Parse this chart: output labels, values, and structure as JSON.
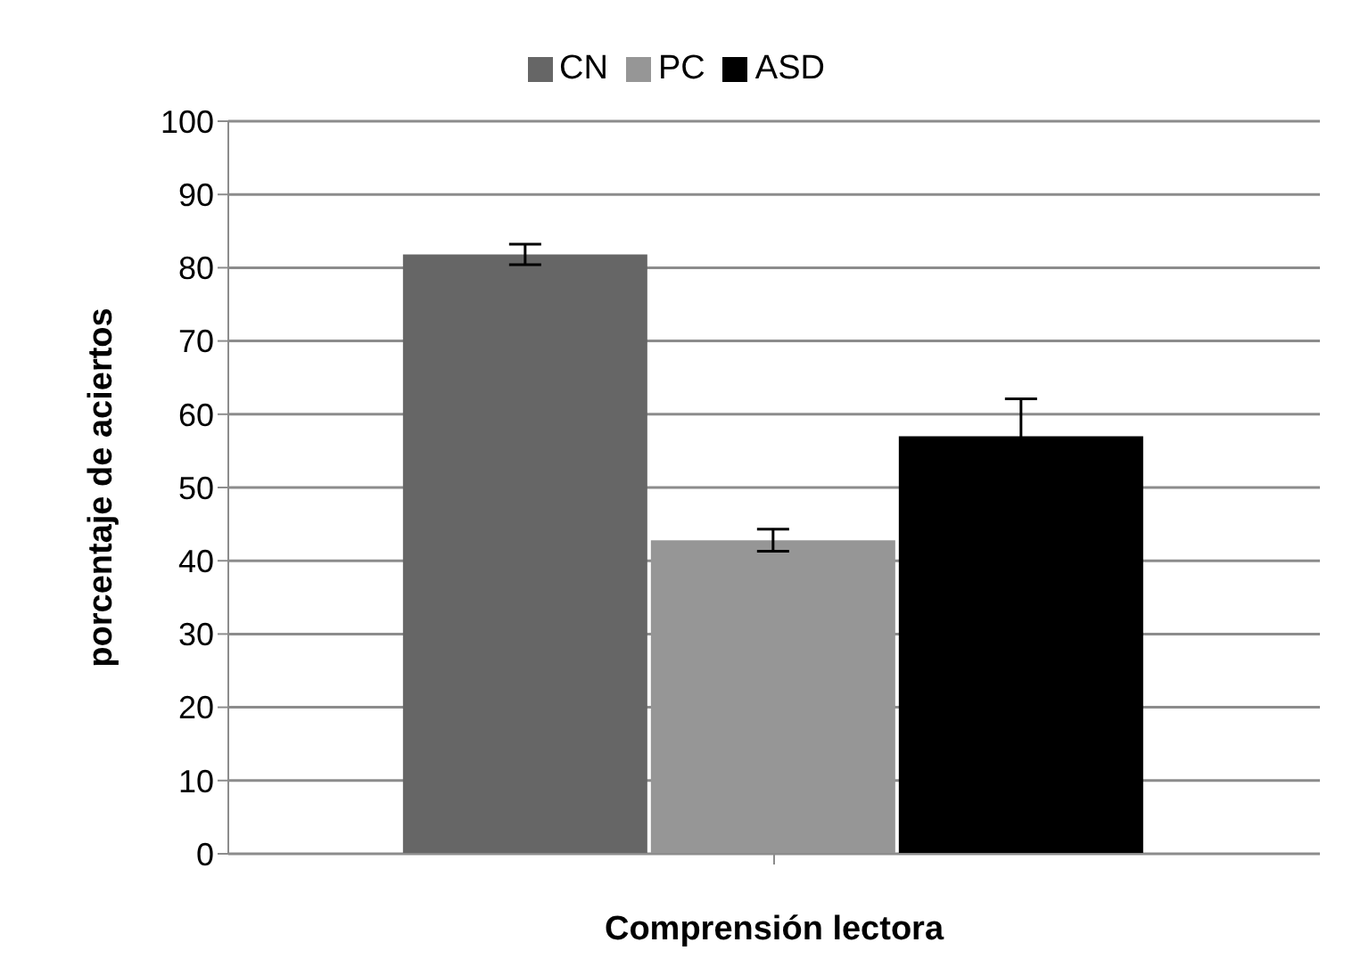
{
  "chart_data": {
    "type": "bar",
    "xlabel": "Comprensión lectora",
    "ylabel": "porcentaje de aciertos",
    "categories": [
      null
    ],
    "series": [
      {
        "name": "CN",
        "color": "#666666",
        "values": [
          81.8
        ],
        "errors": [
          1.4
        ]
      },
      {
        "name": "PC",
        "color": "#969696",
        "values": [
          42.8
        ],
        "errors": [
          1.5
        ]
      },
      {
        "name": "ASD",
        "color": "#000000",
        "values": [
          57.0
        ],
        "errors": [
          5.1
        ]
      }
    ],
    "ylim": [
      0,
      100
    ],
    "yticks": [
      0,
      10,
      20,
      30,
      40,
      50,
      60,
      70,
      80,
      90,
      100
    ],
    "grid": "y",
    "legend": "top"
  }
}
